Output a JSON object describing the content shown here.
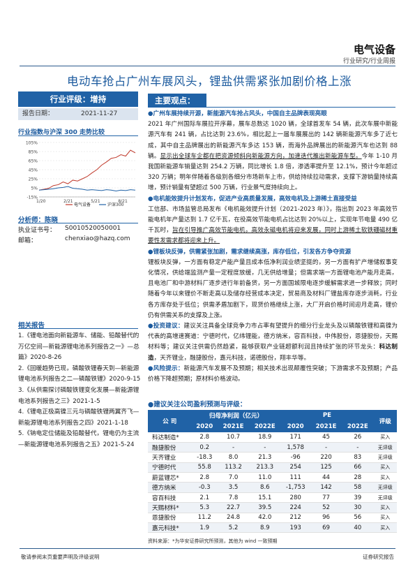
{
  "header": {
    "sector": "电气设备",
    "report_type": "行业研究/行业周报"
  },
  "title": "电动车抢占广州车展风头，锂盐供需紧张加剧价格上涨",
  "rating": {
    "label": "行业评级：增持",
    "date_label": "报告日期：",
    "date_value": "2021-11-27"
  },
  "chart_data": {
    "type": "line",
    "title": "行业指数与沪深 300 走势比较",
    "categories": [
      "1/20",
      "2/21",
      "5/21",
      "8/21"
    ],
    "ylim": [
      -15,
      105
    ],
    "yticks": [
      "105%",
      "85%",
      "65%",
      "45%",
      "25%",
      "5%",
      "-15%"
    ],
    "legend": [
      "电气设备",
      "沪深300"
    ],
    "series": [
      {
        "name": "电气设备",
        "x": [
          0,
          0.05,
          0.1,
          0.15,
          0.2,
          0.25,
          0.3,
          0.35,
          0.4,
          0.45,
          0.5,
          0.55,
          0.6,
          0.65,
          0.7,
          0.75,
          0.8,
          0.85,
          0.9,
          0.95,
          1.0
        ],
        "values": [
          0,
          2,
          4,
          10,
          12,
          18,
          14,
          22,
          20,
          25,
          30,
          38,
          45,
          55,
          62,
          70,
          72,
          78,
          75,
          88,
          82
        ],
        "color": "#c0392b"
      },
      {
        "name": "沪深300",
        "x": [
          0,
          0.05,
          0.1,
          0.15,
          0.2,
          0.25,
          0.3,
          0.35,
          0.4,
          0.45,
          0.5,
          0.55,
          0.6,
          0.65,
          0.7,
          0.75,
          0.8,
          0.85,
          0.9,
          0.95,
          1.0
        ],
        "values": [
          0,
          1,
          2,
          3,
          5,
          6,
          8,
          4,
          3,
          2,
          0,
          1,
          0,
          -1,
          1,
          0,
          -2,
          0,
          -1,
          1,
          0
        ],
        "color": "#2062a6"
      }
    ]
  },
  "analyst": {
    "label": "分析师：陈晓",
    "license_label": "执业证书号：",
    "license_value": "S0010520050001",
    "email_label": "邮箱：",
    "email_value": "chenxiao@hazq.com"
  },
  "related": {
    "title": "相关报告",
    "items": [
      "1.《锂电池面向新能源车、储能、铅酸替代的万亿空间—新能源锂电池系列报告之一》—总篇》2020-8-26",
      "2.《回暖趋势已现，磷酸铁锂春天到—新能源锂电池系列报告之二—磷酸铁锂》2020-9-15",
      "3.《从供需探讨磷酸铁锂变化发展—新能源锂电池系列报告之三》2021-1-5",
      "4.《锂电正极高镍三元与磷酸铁锂两翼齐飞—新能源锂电池系列报告之四》2021-1-18",
      "5.《钠电定位储能及铅酸替代，锂电仍为主流—新能源锂电池系列报告之五》2021-5-24"
    ]
  },
  "key_points": {
    "title": "主要观点：",
    "p1_head": "广州车展持续开源，新能源汽车抢占风头，中国自主品牌表现亮眼",
    "p1_a": "2021 年广州国际车展拉开序幕，展车总数达 1020 辆，全球首发车 54 辆，此次车展中新能源汽车有 241 辆，占比达到 23.6%，相比起上一届车展展出的 142 辆新能源汽车多了近七成，其中自主品牌展出的新能源汽车多达 153 辆，而海外品牌展出的新能源汽车也达到 88 辆。",
    "p1_u": "显示出全球车企都在把资源倾斜向新能源方向，加速迭代推出新能源车型。",
    "p1_b": "今年 1-10 月我国新能源车销量达到 254.2 万辆，同比增长 1.8 倍，渗透率提升至 12.1%，预计今年超过 320 万辆；明年伴随着各级别各细分市场新车上市，供给持续拉动需求，支撑下游销量持续高增，预计销量有望超过 500 万辆，行业景气度持续向上。",
    "p2_head": "电机能效提升计划发布，促进产业高质量发展，高效电机及上游稀土直接受益",
    "p2_a": "工信部、市场监管总局发布《电机能效提升计划（2021-2023 年）》，指出到 2023 年高效节能电机年产量达到 1.7 亿千瓦，在役高效节能电机占比达到 20%以上，实现年节电量 490 亿千瓦时，",
    "p2_u": "旨在引导推广高效节能电机，高效永磁电机将迎来发展，同时上游稀土软铁硼磁材重要性发需求都将迎来上升。",
    "p3_head": "锂板块反弹，供需紧张加剧，需求继续高涨，库存低位，引发各方争夺资源",
    "p3_a": "锂板块反弹，一方面有稳定产能产量且成本低净利润业绩坚挺的，另一方面有扩产增储叙事变化情况，供给端监测产量一定程度放缓，几无供给增量；但需求端一方面锂电池产能月走高，且电池厂和中游材料厂逐步进行年前备货，另一方面国城限电逐步缓解需求进一步释放；同时随着今年以来锂价不断走高以及储存经营成本决定，贸易商及材料厂锂盐库存逐步消耗，行业各方库存处于低位；供需矛盾加剧下，现货价格继续上涨，大厂开启价格时间迎月走高，锂价仍有供需关系的支撑及上涨。",
    "p4_head": "投资建议：",
    "p4_a": "建议关注具备全球竞争力市占率有望提升的细分行业龙头及以磷酸铁锂和高镍为代表的高增速赛道：宁德时代，亿纬锂能，德方纳米，容百科技，中伟股份，恩捷股份，天赐材料等；建议关注供需仍然趋紧，能够获取产业链超额利润且持续扩张的环节龙头：",
    "p4_b": "科达制造",
    "p4_c": "，天齐锂业，融捷股份，嘉元科技，诺德股份，翔丰华等。",
    "p5_head": "风险提示：",
    "p5_a": "新能源汽车发展不及预期；相关技术出现颠覆性突破；下游需求不及预期；产品价格下降超预期；原材料价格波动。"
  },
  "forecast": {
    "title": "建议关注公司盈利预测与评级：",
    "col_company": "公 司",
    "col_profit": "归母净利润（亿元）",
    "col_pe": "PE",
    "col_rating": "评级",
    "years": [
      "2020",
      "2021E",
      "2022E",
      "2020",
      "2021E",
      "2022E"
    ],
    "rows": [
      {
        "name": "科达制造*",
        "v": [
          "2.8",
          "10.7",
          "18.9",
          "171",
          "45",
          "26"
        ],
        "rating": "买入"
      },
      {
        "name": "融捷股份",
        "v": [
          "0.2",
          "-",
          "-",
          "1,578",
          "-",
          "-"
        ],
        "rating": "无评级"
      },
      {
        "name": "天齐锂业",
        "v": [
          "-18.3",
          "8.0",
          "21.3",
          "-96",
          "220",
          "83"
        ],
        "rating": "无评级"
      },
      {
        "name": "宁德时代",
        "v": [
          "55.8",
          "113.2",
          "213.3",
          "254",
          "125",
          "66"
        ],
        "rating": "买入"
      },
      {
        "name": "蔚蓝锂芯*",
        "v": [
          "2.8",
          "7.0",
          "11.0",
          "111",
          "44",
          "28"
        ],
        "rating": "买入"
      },
      {
        "name": "德方纳米",
        "v": [
          "-0.3",
          "3.5",
          "8.6",
          "-1,753",
          "142",
          "58"
        ],
        "rating": "无评级"
      },
      {
        "name": "容百科技",
        "v": [
          "2.1",
          "7.8",
          "15.1",
          "280",
          "77",
          "39"
        ],
        "rating": "无评级"
      },
      {
        "name": "天赐材料*",
        "v": [
          "5.3",
          "22.7",
          "39.5",
          "224",
          "52",
          "30"
        ],
        "rating": "买入"
      },
      {
        "name": "恩捷股份",
        "v": [
          "11.2",
          "24.8",
          "42.0",
          "212",
          "96",
          "56"
        ],
        "rating": "买入"
      },
      {
        "name": "嘉元科技*",
        "v": [
          "1.9",
          "5.2",
          "8.9",
          "193",
          "69",
          "40"
        ],
        "rating": "买入"
      }
    ],
    "source": "资料来源：*为华安证券研究所预测，其他为 wind 一致预期"
  },
  "footer": {
    "left": "敬请参阅末页重要声明及评级说明",
    "right": "证券研究报告"
  }
}
